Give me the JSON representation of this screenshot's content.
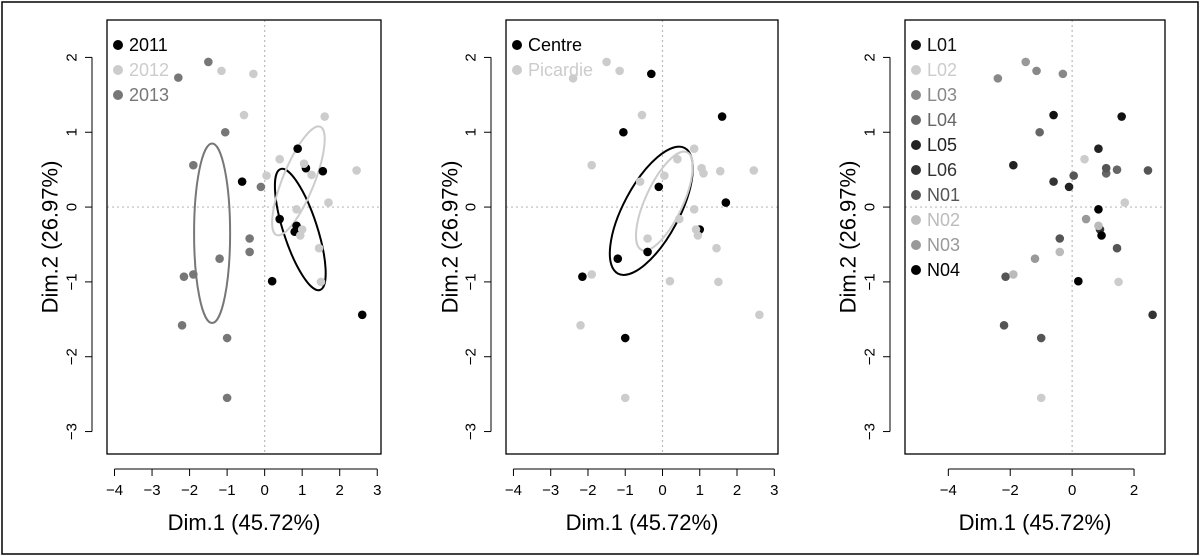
{
  "chart_data": [
    {
      "type": "scatter",
      "panel": "year",
      "xlabel": "Dim.1 (45.72%)",
      "ylabel": "Dim.2 (26.97%)",
      "xlim": [
        -4.2,
        3.1
      ],
      "ylim": [
        -3.3,
        2.5
      ],
      "xticks": [
        -4,
        -3,
        -2,
        -1,
        0,
        1,
        2,
        3
      ],
      "yticks": [
        -3,
        -2,
        -1,
        0,
        1,
        2
      ],
      "xtick_labels": [
        "−4",
        "−3",
        "−2",
        "−1",
        "0",
        "1",
        "2",
        "3"
      ],
      "ytick_labels": [
        "−3",
        "−2",
        "−1",
        "0",
        "1",
        "2"
      ],
      "legend_position": "top-left",
      "series": [
        {
          "name": "2011",
          "color": "#000000",
          "points": [
            [
              -0.6,
              0.34
            ],
            [
              0.88,
              0.78
            ],
            [
              1.1,
              0.52
            ],
            [
              1.55,
              0.48
            ],
            [
              0.4,
              -0.16
            ],
            [
              0.85,
              -0.25
            ],
            [
              0.8,
              -0.33
            ],
            [
              0.2,
              -0.99
            ],
            [
              2.6,
              -1.44
            ]
          ]
        },
        {
          "name": "2012",
          "color": "#cccccc",
          "points": [
            [
              -1.15,
              1.82
            ],
            [
              -0.3,
              1.78
            ],
            [
              -0.55,
              1.23
            ],
            [
              1.6,
              1.21
            ],
            [
              0.05,
              0.42
            ],
            [
              0.4,
              0.64
            ],
            [
              1.05,
              0.58
            ],
            [
              1.25,
              0.43
            ],
            [
              2.45,
              0.49
            ],
            [
              1.7,
              0.06
            ],
            [
              0.85,
              -0.03
            ],
            [
              1.0,
              -0.3
            ],
            [
              0.95,
              -0.38
            ],
            [
              1.45,
              -0.55
            ],
            [
              1.5,
              -1.0
            ]
          ]
        },
        {
          "name": "2013",
          "color": "#777777",
          "points": [
            [
              -2.3,
              1.73
            ],
            [
              -1.5,
              1.94
            ],
            [
              -1.05,
              1.0
            ],
            [
              -1.9,
              0.56
            ],
            [
              -0.1,
              0.27
            ],
            [
              -0.4,
              -0.42
            ],
            [
              -0.4,
              -0.6
            ],
            [
              -1.2,
              -0.69
            ],
            [
              -2.15,
              -0.93
            ],
            [
              -1.9,
              -0.9
            ],
            [
              -2.2,
              -1.58
            ],
            [
              -1.0,
              -1.75
            ],
            [
              -1.0,
              -2.55
            ]
          ]
        }
      ],
      "ellipses": [
        {
          "series": "2011",
          "color": "#000000",
          "center": [
            0.95,
            -0.3
          ],
          "rx": 0.45,
          "ry": 0.85,
          "angle": -18
        },
        {
          "series": "2012",
          "color": "#cccccc",
          "center": [
            0.9,
            0.35
          ],
          "rx": 0.42,
          "ry": 0.78,
          "angle": 22
        },
        {
          "series": "2013",
          "color": "#777777",
          "center": [
            -1.4,
            -0.35
          ],
          "rx": 0.48,
          "ry": 1.2,
          "angle": 0
        }
      ]
    },
    {
      "type": "scatter",
      "panel": "region",
      "xlabel": "Dim.1 (45.72%)",
      "ylabel": "Dim.2 (26.97%)",
      "xlim": [
        -4.2,
        3.1
      ],
      "ylim": [
        -3.3,
        2.5
      ],
      "xticks": [
        -4,
        -3,
        -2,
        -1,
        0,
        1,
        2,
        3
      ],
      "yticks": [
        -3,
        -2,
        -1,
        0,
        1,
        2
      ],
      "xtick_labels": [
        "−4",
        "−3",
        "−2",
        "−1",
        "0",
        "1",
        "2",
        "3"
      ],
      "ytick_labels": [
        "−3",
        "−2",
        "−1",
        "0",
        "1",
        "2"
      ],
      "legend_position": "top-left",
      "series": [
        {
          "name": "Centre",
          "color": "#000000",
          "points": [
            [
              -0.3,
              1.78
            ],
            [
              1.6,
              1.21
            ],
            [
              -1.05,
              1.0
            ],
            [
              -0.1,
              0.27
            ],
            [
              1.7,
              0.06
            ],
            [
              -0.4,
              -0.6
            ],
            [
              -1.2,
              -0.69
            ],
            [
              1.0,
              -0.3
            ],
            [
              -2.15,
              -0.93
            ],
            [
              -1.0,
              -1.75
            ]
          ]
        },
        {
          "name": "Picardie",
          "color": "#cccccc",
          "points": [
            [
              -2.4,
              1.72
            ],
            [
              -1.5,
              1.94
            ],
            [
              -1.15,
              1.82
            ],
            [
              -0.55,
              1.23
            ],
            [
              -1.9,
              0.56
            ],
            [
              -0.6,
              0.34
            ],
            [
              0.05,
              0.42
            ],
            [
              0.4,
              0.64
            ],
            [
              0.85,
              0.78
            ],
            [
              1.05,
              0.52
            ],
            [
              1.1,
              0.45
            ],
            [
              1.55,
              0.48
            ],
            [
              2.45,
              0.49
            ],
            [
              0.85,
              -0.03
            ],
            [
              0.45,
              -0.16
            ],
            [
              0.9,
              -0.3
            ],
            [
              0.95,
              -0.38
            ],
            [
              -0.4,
              -0.42
            ],
            [
              1.45,
              -0.55
            ],
            [
              0.2,
              -0.99
            ],
            [
              1.5,
              -1.0
            ],
            [
              -1.9,
              -0.9
            ],
            [
              -2.2,
              -1.58
            ],
            [
              2.6,
              -1.44
            ],
            [
              -1.0,
              -2.55
            ]
          ]
        }
      ],
      "ellipses": [
        {
          "series": "Centre",
          "color": "#000000",
          "center": [
            -0.3,
            -0.05
          ],
          "rx": 0.75,
          "ry": 0.95,
          "angle": 28
        },
        {
          "series": "Picardie",
          "color": "#cccccc",
          "center": [
            0.05,
            0.08
          ],
          "rx": 0.5,
          "ry": 0.72,
          "angle": 25
        }
      ]
    },
    {
      "type": "scatter",
      "panel": "site",
      "xlabel": "Dim.1 (45.72%)",
      "ylabel": "Dim.2 (26.97%)",
      "xlim": [
        -5.4,
        3.0
      ],
      "ylim": [
        -3.3,
        2.5
      ],
      "xticks": [
        -4,
        -2,
        0,
        2
      ],
      "yticks": [
        -3,
        -2,
        -1,
        0,
        1,
        2
      ],
      "xtick_labels": [
        "−4",
        "−2",
        "0",
        "2"
      ],
      "ytick_labels": [
        "−3",
        "−2",
        "−1",
        "0",
        "1",
        "2"
      ],
      "legend_position": "top-left",
      "series": [
        {
          "name": "L01",
          "color": "#111111",
          "points": [
            [
              -0.6,
              1.23
            ],
            [
              1.6,
              1.21
            ]
          ]
        },
        {
          "name": "L02",
          "color": "#cccccc",
          "points": [
            [
              0.4,
              0.64
            ],
            [
              1.7,
              0.06
            ],
            [
              1.5,
              -1.0
            ],
            [
              -1.0,
              -2.55
            ]
          ]
        },
        {
          "name": "L03",
          "color": "#888888",
          "points": [
            [
              -1.15,
              1.82
            ],
            [
              -0.3,
              1.78
            ],
            [
              -2.4,
              1.72
            ]
          ]
        },
        {
          "name": "L04",
          "color": "#666666",
          "points": [
            [
              -1.05,
              1.0
            ],
            [
              1.1,
              0.45
            ],
            [
              1.45,
              0.5
            ]
          ]
        },
        {
          "name": "L05",
          "color": "#222222",
          "points": [
            [
              -1.9,
              0.56
            ],
            [
              0.85,
              0.78
            ],
            [
              -0.1,
              0.27
            ]
          ]
        },
        {
          "name": "L06",
          "color": "#333333",
          "points": [
            [
              -0.6,
              0.34
            ],
            [
              0.9,
              -0.3
            ],
            [
              2.6,
              -1.44
            ]
          ]
        },
        {
          "name": "N01",
          "color": "#555555",
          "points": [
            [
              1.1,
              0.52
            ],
            [
              2.45,
              0.49
            ],
            [
              0.05,
              0.42
            ],
            [
              -0.4,
              -0.42
            ],
            [
              1.45,
              -0.55
            ],
            [
              -2.15,
              -0.93
            ],
            [
              -2.2,
              -1.58
            ],
            [
              -1.0,
              -1.75
            ]
          ]
        },
        {
          "name": "N02",
          "color": "#bbbbbb",
          "points": [
            [
              -0.4,
              -0.6
            ],
            [
              -1.9,
              -0.9
            ],
            [
              0.85,
              -0.25
            ]
          ]
        },
        {
          "name": "N03",
          "color": "#999999",
          "points": [
            [
              -1.5,
              1.94
            ],
            [
              0.45,
              -0.16
            ],
            [
              -1.2,
              -0.69
            ]
          ]
        },
        {
          "name": "N04",
          "color": "#000000",
          "points": [
            [
              0.85,
              -0.03
            ],
            [
              0.95,
              -0.38
            ],
            [
              0.2,
              -0.99
            ]
          ]
        }
      ],
      "ellipses": []
    }
  ]
}
